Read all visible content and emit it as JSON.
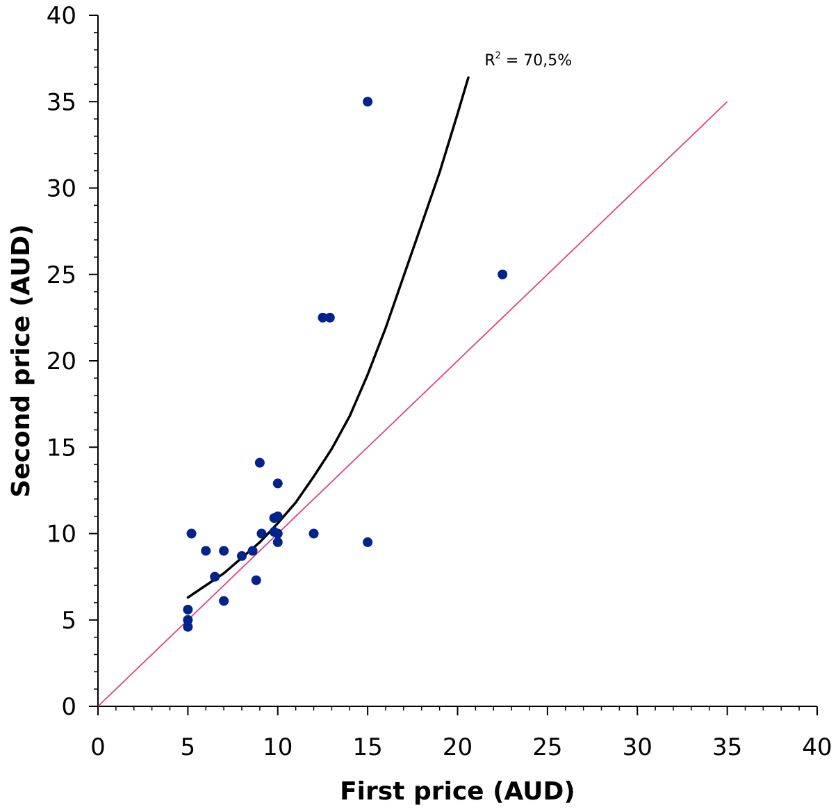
{
  "chart_data": {
    "type": "scatter",
    "title": "",
    "xlabel": "First price (AUD)",
    "ylabel": "Second price (AUD)",
    "xlim": [
      0,
      40
    ],
    "ylim": [
      0,
      40
    ],
    "x_ticks": [
      0,
      5,
      10,
      15,
      20,
      25,
      30,
      35,
      40
    ],
    "y_ticks": [
      0,
      5,
      10,
      15,
      20,
      25,
      30,
      35,
      40
    ],
    "x_tick_labels": [
      "0",
      "5",
      "10",
      "15",
      "20",
      "25",
      "30",
      "35",
      "40"
    ],
    "y_tick_labels": [
      "0",
      "5",
      "10",
      "15",
      "20",
      "25",
      "30",
      "35",
      "40"
    ],
    "grid": false,
    "points": [
      {
        "x": 5,
        "y": 4.6
      },
      {
        "x": 5,
        "y": 5.0
      },
      {
        "x": 5,
        "y": 5.6
      },
      {
        "x": 5.2,
        "y": 10.0
      },
      {
        "x": 6,
        "y": 9.0
      },
      {
        "x": 6.5,
        "y": 7.5
      },
      {
        "x": 7,
        "y": 9.0
      },
      {
        "x": 7,
        "y": 6.1
      },
      {
        "x": 8,
        "y": 8.7
      },
      {
        "x": 8.6,
        "y": 9.0
      },
      {
        "x": 8.8,
        "y": 7.3
      },
      {
        "x": 9,
        "y": 14.1
      },
      {
        "x": 9.1,
        "y": 10.0
      },
      {
        "x": 9.8,
        "y": 10.1
      },
      {
        "x": 9.8,
        "y": 10.9
      },
      {
        "x": 10,
        "y": 11.0
      },
      {
        "x": 10,
        "y": 12.9
      },
      {
        "x": 10,
        "y": 10.0
      },
      {
        "x": 10,
        "y": 9.5
      },
      {
        "x": 12,
        "y": 10.0
      },
      {
        "x": 12.5,
        "y": 22.5
      },
      {
        "x": 12.9,
        "y": 22.5
      },
      {
        "x": 15,
        "y": 35.0
      },
      {
        "x": 15,
        "y": 9.5
      },
      {
        "x": 22.5,
        "y": 25.0
      }
    ],
    "trend_curve": {
      "x": [
        5.0,
        6.0,
        7.0,
        8.0,
        9.0,
        10.0,
        11.0,
        12.0,
        13.0,
        14.0,
        15.0,
        16.0,
        17.0,
        18.0,
        19.0,
        20.0,
        20.6
      ],
      "y": [
        6.3,
        7.0,
        7.7,
        8.6,
        9.5,
        10.6,
        11.8,
        13.3,
        14.9,
        16.8,
        19.2,
        21.9,
        24.9,
        27.9,
        30.9,
        34.3,
        36.4
      ]
    },
    "identity_line": {
      "x": [
        0,
        35
      ],
      "y": [
        0,
        35
      ]
    },
    "annotation": {
      "base": "R",
      "sup": "2",
      "text": " = 70,5%",
      "x": 21.5,
      "y": 37.1
    },
    "colors": {
      "points": "#00238c",
      "trend": "#000000",
      "identity": "#e0408a",
      "axis": "#000000"
    }
  }
}
